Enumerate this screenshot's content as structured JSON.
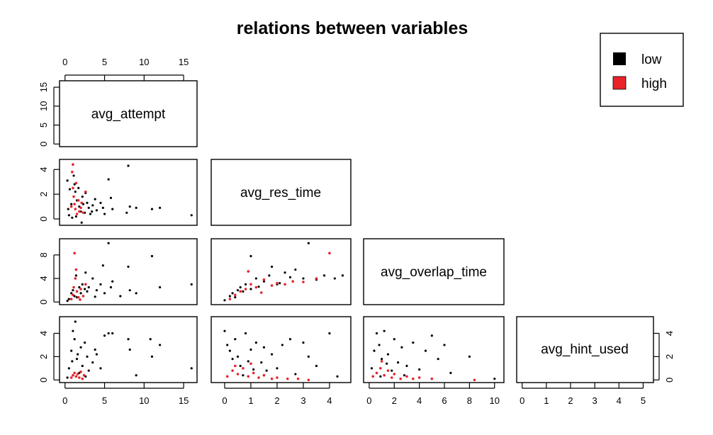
{
  "chart_data": {
    "type": "scatter",
    "title": "relations between variables",
    "variables": [
      "avg_attempt",
      "avg_res_time",
      "avg_overlap_time",
      "avg_hint_used"
    ],
    "ranges": {
      "avg_attempt": [
        0,
        16
      ],
      "avg_res_time": [
        -0.3,
        4.6
      ],
      "avg_overlap_time": [
        0,
        10.3
      ],
      "avg_hint_used": [
        0,
        5.2
      ]
    },
    "ticks": {
      "avg_attempt": [
        0,
        5,
        10,
        15
      ],
      "avg_res_time": [
        0,
        2,
        4
      ],
      "avg_res_time_x": [
        0,
        1,
        2,
        3,
        4
      ],
      "avg_overlap_time": [
        0,
        4,
        8
      ],
      "avg_overlap_time_x": [
        0,
        2,
        4,
        6,
        8,
        10
      ],
      "avg_hint_used": [
        0,
        2,
        4
      ],
      "avg_hint_used_x": [
        0,
        1,
        2,
        3,
        4,
        5
      ]
    },
    "legend": {
      "position": "top-right",
      "entries": [
        {
          "label": "low",
          "color": "#000000"
        },
        {
          "label": "high",
          "color": "#e8232a"
        }
      ]
    },
    "panels": [
      {
        "x": "avg_attempt",
        "y": "avg_res_time",
        "low": [
          [
            0.5,
            0.3
          ],
          [
            0.8,
            1.2
          ],
          [
            1.0,
            4.4
          ],
          [
            1.1,
            3.5
          ],
          [
            1.2,
            2.8
          ],
          [
            1.3,
            2.2
          ],
          [
            1.5,
            1.5
          ],
          [
            1.8,
            1.0
          ],
          [
            2.0,
            0.6
          ],
          [
            2.2,
            1.8
          ],
          [
            2.5,
            0.5
          ],
          [
            2.8,
            1.3
          ],
          [
            3.0,
            0.9
          ],
          [
            3.2,
            0.4
          ],
          [
            3.5,
            1.1
          ],
          [
            4.0,
            0.7
          ],
          [
            4.5,
            1.3
          ],
          [
            5.0,
            0.4
          ],
          [
            5.5,
            3.2
          ],
          [
            5.8,
            1.7
          ],
          [
            6.0,
            0.8
          ],
          [
            8.0,
            4.3
          ],
          [
            8.2,
            1.0
          ],
          [
            9.0,
            0.9
          ],
          [
            11.0,
            0.8
          ],
          [
            12.0,
            0.9
          ],
          [
            16.0,
            0.3
          ],
          [
            0.3,
            3.1
          ],
          [
            0.6,
            2.4
          ],
          [
            0.9,
            0.1
          ],
          [
            1.4,
            0.2
          ],
          [
            2.6,
            2.1
          ],
          [
            3.8,
            1.6
          ],
          [
            2.1,
            -0.3
          ],
          [
            0.4,
            0.8
          ],
          [
            1.7,
            2.5
          ],
          [
            2.3,
            1.2
          ],
          [
            3.4,
            0.6
          ],
          [
            4.8,
            0.9
          ],
          [
            7.8,
            0.5
          ]
        ],
        "high": [
          [
            0.9,
            3.8
          ],
          [
            1.0,
            2.5
          ],
          [
            1.1,
            1.8
          ],
          [
            1.2,
            1.2
          ],
          [
            1.3,
            0.8
          ],
          [
            1.5,
            0.4
          ],
          [
            1.7,
            1.5
          ],
          [
            2.0,
            0.9
          ],
          [
            2.3,
            0.5
          ],
          [
            2.6,
            2.2
          ],
          [
            0.8,
            1.0
          ],
          [
            1.0,
            4.4
          ],
          [
            1.4,
            2.9
          ],
          [
            1.8,
            0.6
          ],
          [
            2.1,
            1.3
          ]
        ]
      },
      {
        "x": "avg_attempt",
        "y": "avg_overlap_time",
        "low": [
          [
            0.5,
            0.5
          ],
          [
            0.8,
            1.5
          ],
          [
            1.0,
            2.0
          ],
          [
            1.2,
            1.0
          ],
          [
            1.5,
            0.8
          ],
          [
            1.8,
            2.5
          ],
          [
            2.0,
            1.5
          ],
          [
            2.2,
            3.0
          ],
          [
            2.5,
            2.2
          ],
          [
            2.8,
            1.8
          ],
          [
            3.0,
            2.5
          ],
          [
            3.5,
            4.0
          ],
          [
            4.0,
            2.0
          ],
          [
            4.5,
            3.0
          ],
          [
            5.0,
            1.5
          ],
          [
            5.5,
            10.0
          ],
          [
            5.8,
            2.5
          ],
          [
            6.0,
            3.5
          ],
          [
            8.0,
            6.0
          ],
          [
            8.2,
            2.0
          ],
          [
            9.0,
            1.5
          ],
          [
            11.0,
            7.8
          ],
          [
            12.0,
            2.5
          ],
          [
            16.0,
            3.0
          ],
          [
            0.3,
            0.2
          ],
          [
            1.4,
            4.5
          ],
          [
            2.6,
            5.0
          ],
          [
            3.8,
            0.9
          ],
          [
            4.8,
            6.2
          ],
          [
            7.0,
            1.0
          ]
        ],
        "high": [
          [
            0.8,
            0.5
          ],
          [
            1.0,
            1.2
          ],
          [
            1.1,
            2.5
          ],
          [
            1.2,
            8.3
          ],
          [
            1.3,
            4.0
          ],
          [
            1.4,
            5.5
          ],
          [
            1.5,
            1.8
          ],
          [
            1.7,
            0.8
          ],
          [
            2.0,
            2.2
          ],
          [
            2.3,
            1.0
          ],
          [
            2.6,
            3.0
          ],
          [
            1.9,
            0.4
          ]
        ]
      },
      {
        "x": "avg_res_time",
        "y": "avg_overlap_time",
        "low": [
          [
            0.0,
            0.3
          ],
          [
            0.2,
            1.0
          ],
          [
            0.3,
            1.5
          ],
          [
            0.5,
            2.0
          ],
          [
            0.6,
            2.5
          ],
          [
            0.8,
            3.0
          ],
          [
            1.0,
            2.2
          ],
          [
            1.2,
            4.0
          ],
          [
            1.5,
            3.5
          ],
          [
            1.7,
            4.5
          ],
          [
            2.0,
            3.0
          ],
          [
            2.3,
            5.0
          ],
          [
            2.5,
            4.2
          ],
          [
            2.7,
            5.5
          ],
          [
            3.0,
            4.0
          ],
          [
            3.2,
            10.0
          ],
          [
            3.5,
            3.8
          ],
          [
            3.8,
            4.5
          ],
          [
            4.2,
            4.0
          ],
          [
            4.5,
            4.5
          ],
          [
            1.0,
            7.8
          ],
          [
            1.8,
            6.0
          ],
          [
            0.4,
            0.8
          ],
          [
            0.7,
            1.8
          ],
          [
            1.3,
            2.6
          ],
          [
            2.1,
            3.2
          ]
        ],
        "high": [
          [
            0.2,
            0.5
          ],
          [
            0.4,
            1.2
          ],
          [
            0.6,
            1.8
          ],
          [
            0.8,
            2.2
          ],
          [
            1.0,
            3.0
          ],
          [
            1.2,
            2.5
          ],
          [
            1.5,
            3.8
          ],
          [
            1.8,
            2.8
          ],
          [
            2.0,
            3.2
          ],
          [
            2.3,
            3.0
          ],
          [
            2.6,
            3.5
          ],
          [
            3.0,
            3.4
          ],
          [
            3.5,
            4.0
          ],
          [
            4.0,
            8.3
          ],
          [
            0.9,
            5.2
          ],
          [
            1.4,
            1.6
          ]
        ]
      },
      {
        "x": "avg_attempt",
        "y": "avg_hint_used",
        "low": [
          [
            0.5,
            1.0
          ],
          [
            0.8,
            2.5
          ],
          [
            1.0,
            4.2
          ],
          [
            1.2,
            3.5
          ],
          [
            1.5,
            1.8
          ],
          [
            1.8,
            0.6
          ],
          [
            2.0,
            2.8
          ],
          [
            2.2,
            1.2
          ],
          [
            2.5,
            3.2
          ],
          [
            2.8,
            2.0
          ],
          [
            3.0,
            0.8
          ],
          [
            3.5,
            1.5
          ],
          [
            4.0,
            2.2
          ],
          [
            4.5,
            1.0
          ],
          [
            5.0,
            3.8
          ],
          [
            5.5,
            4.0
          ],
          [
            6.0,
            4.0
          ],
          [
            8.0,
            3.5
          ],
          [
            8.2,
            2.6
          ],
          [
            9.0,
            0.4
          ],
          [
            10.8,
            3.5
          ],
          [
            11.0,
            2.0
          ],
          [
            12.0,
            3.0
          ],
          [
            16.0,
            1.0
          ],
          [
            0.3,
            0.2
          ],
          [
            1.3,
            5.0
          ],
          [
            2.6,
            0.3
          ],
          [
            3.8,
            2.6
          ],
          [
            0.9,
            1.6
          ],
          [
            1.6,
            2.2
          ]
        ],
        "high": [
          [
            0.8,
            0.2
          ],
          [
            1.0,
            0.4
          ],
          [
            1.2,
            0.6
          ],
          [
            1.4,
            0.3
          ],
          [
            1.6,
            0.5
          ],
          [
            1.8,
            0.2
          ],
          [
            2.0,
            0.7
          ],
          [
            2.2,
            0.1
          ],
          [
            2.4,
            0.4
          ]
        ]
      },
      {
        "x": "avg_res_time",
        "y": "avg_hint_used",
        "low": [
          [
            0.0,
            4.2
          ],
          [
            0.1,
            3.0
          ],
          [
            0.2,
            2.5
          ],
          [
            0.3,
            1.8
          ],
          [
            0.4,
            3.5
          ],
          [
            0.5,
            2.0
          ],
          [
            0.6,
            1.2
          ],
          [
            0.8,
            4.0
          ],
          [
            1.0,
            2.6
          ],
          [
            1.2,
            3.2
          ],
          [
            1.4,
            1.5
          ],
          [
            1.6,
            0.8
          ],
          [
            1.8,
            2.2
          ],
          [
            2.0,
            1.0
          ],
          [
            2.2,
            3.0
          ],
          [
            2.5,
            3.5
          ],
          [
            2.7,
            0.5
          ],
          [
            3.0,
            3.2
          ],
          [
            3.2,
            2.0
          ],
          [
            3.5,
            1.2
          ],
          [
            4.0,
            4.0
          ],
          [
            4.3,
            0.3
          ],
          [
            0.7,
            0.4
          ],
          [
            0.9,
            1.6
          ],
          [
            1.1,
            0.9
          ],
          [
            1.5,
            2.8
          ]
        ],
        "high": [
          [
            0.1,
            0.3
          ],
          [
            0.3,
            0.8
          ],
          [
            0.5,
            0.5
          ],
          [
            0.7,
            1.0
          ],
          [
            0.9,
            0.3
          ],
          [
            1.1,
            0.6
          ],
          [
            1.3,
            0.2
          ],
          [
            1.5,
            0.4
          ],
          [
            1.8,
            0.1
          ],
          [
            2.0,
            0.2
          ],
          [
            2.4,
            0.1
          ],
          [
            2.8,
            0.1
          ],
          [
            3.2,
            0.0
          ],
          [
            1.0,
            1.4
          ],
          [
            0.4,
            1.2
          ]
        ]
      },
      {
        "x": "avg_overlap_time",
        "y": "avg_hint_used",
        "low": [
          [
            0.2,
            1.0
          ],
          [
            0.4,
            2.5
          ],
          [
            0.6,
            4.0
          ],
          [
            0.8,
            3.0
          ],
          [
            1.0,
            1.8
          ],
          [
            1.2,
            4.2
          ],
          [
            1.5,
            2.2
          ],
          [
            1.8,
            0.8
          ],
          [
            2.0,
            3.5
          ],
          [
            2.3,
            1.5
          ],
          [
            2.6,
            2.8
          ],
          [
            3.0,
            1.2
          ],
          [
            3.5,
            3.2
          ],
          [
            4.0,
            0.9
          ],
          [
            4.5,
            2.5
          ],
          [
            5.0,
            3.8
          ],
          [
            5.5,
            1.8
          ],
          [
            6.0,
            3.0
          ],
          [
            6.5,
            0.6
          ],
          [
            8.0,
            2.0
          ],
          [
            10.0,
            0.1
          ],
          [
            0.9,
            0.3
          ],
          [
            1.4,
            1.4
          ],
          [
            2.8,
            0.4
          ]
        ],
        "high": [
          [
            0.3,
            0.3
          ],
          [
            0.6,
            0.6
          ],
          [
            0.9,
            1.0
          ],
          [
            1.2,
            0.4
          ],
          [
            1.5,
            0.8
          ],
          [
            1.8,
            0.2
          ],
          [
            2.0,
            0.5
          ],
          [
            2.5,
            0.1
          ],
          [
            3.0,
            0.3
          ],
          [
            3.5,
            0.1
          ],
          [
            4.0,
            0.2
          ],
          [
            5.0,
            0.1
          ],
          [
            8.4,
            0.0
          ],
          [
            1.0,
            1.6
          ]
        ]
      }
    ]
  }
}
